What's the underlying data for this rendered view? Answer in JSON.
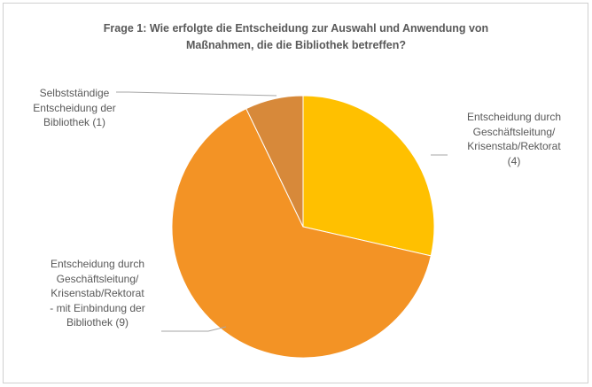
{
  "chart_data": {
    "type": "pie",
    "title_lines": [
      "Frage 1: Wie erfolgte die Entscheidung zur Auswahl und Anwendung von",
      "Maßnahmen, die die Bibliothek betreffen?"
    ],
    "slices": [
      {
        "label_lines": [
          "Entscheidung durch",
          "Geschäftsleitung/",
          "Krisenstab/Rektorat",
          "(4)"
        ],
        "value": 4,
        "color": "#FFC000"
      },
      {
        "label_lines": [
          "Entscheidung durch",
          "Geschäftsleitung/",
          "Krisenstab/Rektorat",
          "- mit Einbindung der",
          "Bibliothek (9)"
        ],
        "value": 9,
        "color": "#F39325"
      },
      {
        "label_lines": [
          "Selbstständige",
          "Entscheidung der",
          "Bibliothek (1)"
        ],
        "value": 1,
        "color": "#D7893A"
      }
    ]
  }
}
